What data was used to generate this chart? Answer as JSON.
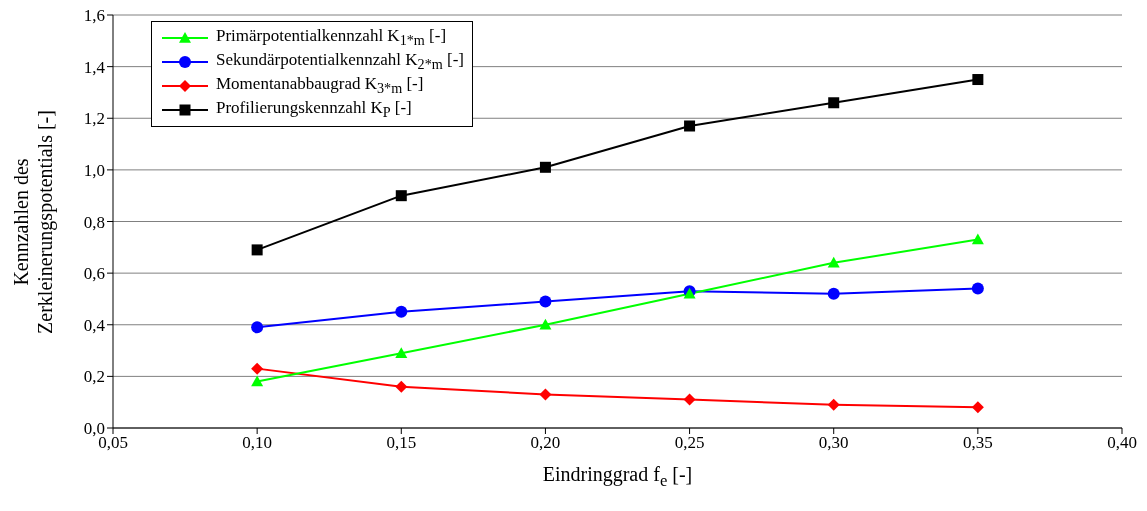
{
  "chart_data": {
    "type": "line",
    "xlabel": "Eindringgrad f$_{e}$ [-]",
    "ylabel": "Kennzahlen des Zerkleinerungspotentials [-]",
    "x": [
      0.1,
      0.15,
      0.2,
      0.25,
      0.3,
      0.35
    ],
    "series": [
      {
        "name": "Primärpotentialkennzahl K$_{1*m}$ [-]",
        "color": "#00ff00",
        "marker": "triangle",
        "values": [
          0.18,
          0.29,
          0.4,
          0.52,
          0.64,
          0.73
        ]
      },
      {
        "name": "Sekundärpotentialkennzahl K$_{2*m}$ [-]",
        "color": "#0000ff",
        "marker": "circle",
        "values": [
          0.39,
          0.45,
          0.49,
          0.53,
          0.52,
          0.54
        ]
      },
      {
        "name": "Momentanabbaugrad K$_{3*m}$ [-]",
        "color": "#ff0000",
        "marker": "diamond",
        "values": [
          0.23,
          0.16,
          0.13,
          0.11,
          0.09,
          0.08
        ]
      },
      {
        "name": "Profilierungskennzahl K$_{P}$ [-]",
        "color": "#000000",
        "marker": "square",
        "values": [
          0.69,
          0.9,
          1.01,
          1.17,
          1.26,
          1.35
        ]
      }
    ],
    "xlim": [
      0.05,
      0.4
    ],
    "xticks": [
      {
        "value": 0.05,
        "label": "0,05"
      },
      {
        "value": 0.1,
        "label": "0,10"
      },
      {
        "value": 0.15,
        "label": "0,15"
      },
      {
        "value": 0.2,
        "label": "0,20"
      },
      {
        "value": 0.25,
        "label": "0,25"
      },
      {
        "value": 0.3,
        "label": "0,30"
      },
      {
        "value": 0.35,
        "label": "0,35"
      },
      {
        "value": 0.4,
        "label": "0,40"
      }
    ],
    "ylim": [
      0,
      1.6
    ],
    "yticks": [
      {
        "value": 0,
        "label": "0,0"
      },
      {
        "value": 0.2,
        "label": "0,2"
      },
      {
        "value": 0.4,
        "label": "0,4"
      },
      {
        "value": 0.6,
        "label": "0,6"
      },
      {
        "value": 0.8,
        "label": "0,8"
      },
      {
        "value": 1.0,
        "label": "1,0"
      },
      {
        "value": 1.2,
        "label": "1,2"
      },
      {
        "value": 1.4,
        "label": "1,4"
      },
      {
        "value": 1.6,
        "label": "1,6"
      }
    ],
    "grid": "y",
    "legend": "top left",
    "line_style": "solid"
  }
}
